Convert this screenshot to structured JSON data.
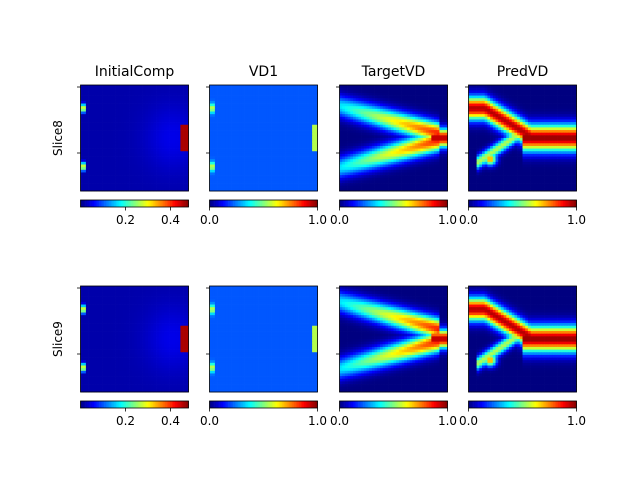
{
  "chart_data": {
    "type": "heatmap",
    "colormap": "jet",
    "columns": [
      {
        "title": "InitialComp",
        "kind": "initial",
        "clim": [
          0.0,
          0.48
        ],
        "colorbar_ticks": [
          0.2,
          0.4
        ],
        "colorbar_tick_labels": [
          "0.2",
          "0.4"
        ]
      },
      {
        "title": "VD1",
        "kind": "vd1",
        "clim": [
          0.0,
          1.0
        ],
        "colorbar_ticks": [
          0.0,
          1.0
        ],
        "colorbar_tick_labels": [
          "0.0",
          "1.0"
        ]
      },
      {
        "title": "TargetVD",
        "kind": "target",
        "clim": [
          0.0,
          1.0
        ],
        "colorbar_ticks": [
          0.0,
          1.0
        ],
        "colorbar_tick_labels": [
          "0.0",
          "1.0"
        ]
      },
      {
        "title": "PredVD",
        "kind": "pred",
        "clim": [
          0.0,
          1.0
        ],
        "colorbar_ticks": [
          0.0,
          1.0
        ],
        "colorbar_tick_labels": [
          "0.0",
          "1.0"
        ]
      }
    ],
    "rows": [
      {
        "label": "Slice8",
        "variant": 0
      },
      {
        "label": "Slice9",
        "variant": 1
      }
    ],
    "grid": {
      "cols": 40,
      "rows": 40
    }
  }
}
